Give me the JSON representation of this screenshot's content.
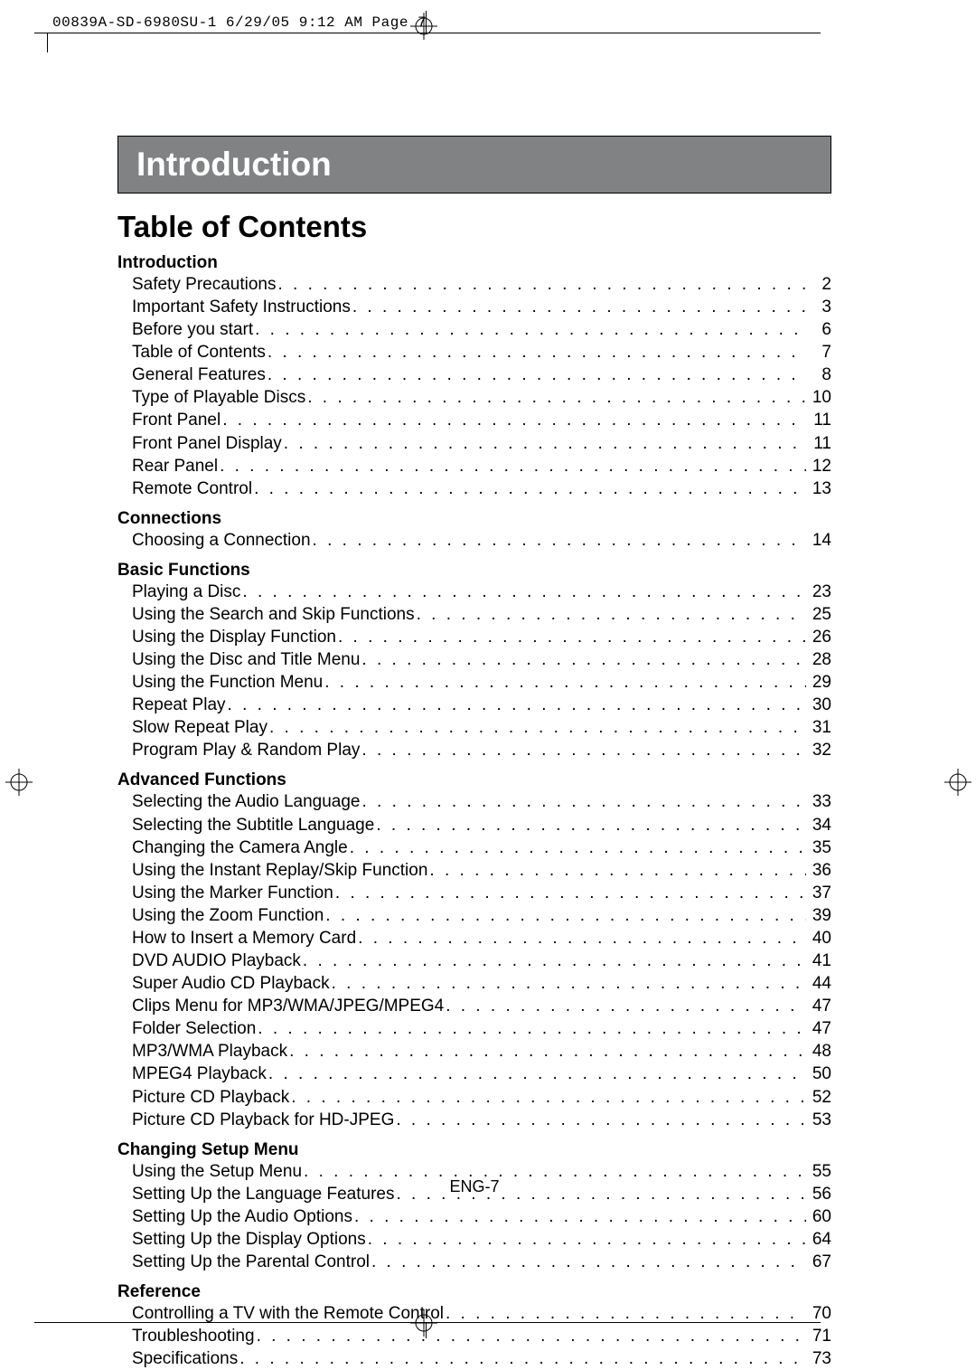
{
  "header_slug": "00839A-SD-6980SU-1  6/29/05  9:12 AM  Page 7",
  "banner": "Introduction",
  "toc_title": "Table of Contents",
  "page_footer": "ENG-7",
  "sections": [
    {
      "title": "Introduction",
      "items": [
        {
          "label": "Safety Precautions",
          "page": "2"
        },
        {
          "label": "Important Safety Instructions",
          "page": "3"
        },
        {
          "label": "Before you start",
          "page": "6"
        },
        {
          "label": "Table of Contents",
          "page": "7"
        },
        {
          "label": "General Features",
          "page": "8"
        },
        {
          "label": "Type of Playable Discs",
          "page": "10"
        },
        {
          "label": "Front Panel",
          "page": "11"
        },
        {
          "label": "Front Panel Display",
          "page": "11"
        },
        {
          "label": "Rear Panel",
          "page": "12"
        },
        {
          "label": "Remote Control",
          "page": "13"
        }
      ]
    },
    {
      "title": "Connections",
      "items": [
        {
          "label": "Choosing a Connection",
          "page": "14"
        }
      ]
    },
    {
      "title": "Basic Functions",
      "items": [
        {
          "label": "Playing a Disc",
          "page": "23"
        },
        {
          "label": "Using the Search and Skip Functions",
          "page": "25"
        },
        {
          "label": "Using the Display Function",
          "page": "26"
        },
        {
          "label": "Using the Disc and Title Menu",
          "page": "28"
        },
        {
          "label": "Using the Function Menu",
          "page": "29"
        },
        {
          "label": "Repeat Play",
          "page": "30"
        },
        {
          "label": "Slow Repeat Play",
          "page": "31"
        },
        {
          "label": "Program Play & Random Play",
          "page": "32"
        }
      ]
    },
    {
      "title": "Advanced Functions",
      "items": [
        {
          "label": "Selecting the Audio Language",
          "page": "33"
        },
        {
          "label": "Selecting the Subtitle Language",
          "page": "34"
        },
        {
          "label": "Changing the Camera Angle",
          "page": "35"
        },
        {
          "label": "Using the Instant Replay/Skip Function",
          "page": "36"
        },
        {
          "label": "Using the Marker Function",
          "page": "37"
        },
        {
          "label": "Using the Zoom Function",
          "page": "39"
        },
        {
          "label": "How to Insert a Memory Card",
          "page": "40"
        },
        {
          "label": "DVD AUDIO Playback",
          "page": "41"
        },
        {
          "label": "Super Audio CD Playback",
          "page": "44"
        },
        {
          "label": "Clips Menu for MP3/WMA/JPEG/MPEG4",
          "page": "47"
        },
        {
          "label": "Folder Selection",
          "page": "47"
        },
        {
          "label": "MP3/WMA Playback",
          "page": "48"
        },
        {
          "label": "MPEG4 Playback",
          "page": "50"
        },
        {
          "label": "Picture CD Playback",
          "page": "52"
        },
        {
          "label": "Picture CD Playback for HD-JPEG",
          "page": "53"
        }
      ]
    },
    {
      "title": "Changing Setup Menu",
      "items": [
        {
          "label": "Using the Setup Menu",
          "page": "55"
        },
        {
          "label": "Setting Up the Language Features",
          "page": "56"
        },
        {
          "label": "Setting Up the Audio Options",
          "page": "60"
        },
        {
          "label": "Setting Up the Display Options",
          "page": "64"
        },
        {
          "label": "Setting Up the Parental Control",
          "page": "67"
        }
      ]
    },
    {
      "title": "Reference",
      "items": [
        {
          "label": "Controlling a TV with the Remote Control",
          "page": "70"
        },
        {
          "label": "Troubleshooting",
          "page": "71"
        },
        {
          "label": "Specifications",
          "page": "73"
        }
      ]
    }
  ],
  "colors": {
    "banner_bg": "#808284",
    "banner_text": "#ffffff",
    "text": "#000000",
    "page_bg": "#ffffff"
  },
  "fonts": {
    "body": "Arial",
    "slug": "Courier New",
    "banner_size_pt": 28,
    "toc_title_size_pt": 25,
    "section_title_size_pt": 14,
    "body_size_pt": 14
  }
}
